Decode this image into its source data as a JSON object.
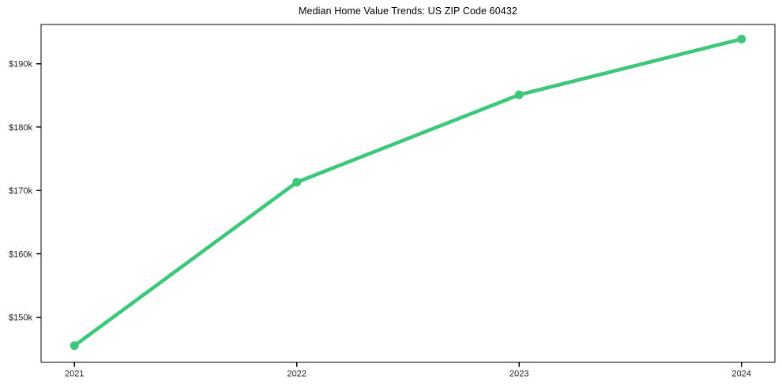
{
  "title": "Median Home Value Trends: US ZIP Code 60432",
  "colors": {
    "line": "#3cc878",
    "marker": "#3cc878",
    "axis": "#000000",
    "text": "#1a1a1a",
    "background": "#ffffff"
  },
  "chart_data": {
    "type": "line",
    "title": "Median Home Value Trends: US ZIP Code 60432",
    "xlabel": "",
    "ylabel": "",
    "x": [
      2021,
      2022,
      2023,
      2024
    ],
    "x_tick_labels": [
      "2021",
      "2022",
      "2023",
      "2024"
    ],
    "series": [
      {
        "name": "Median Home Value",
        "values": [
          145500,
          171300,
          185100,
          193900
        ]
      }
    ],
    "y_ticks": [
      150000,
      160000,
      170000,
      180000,
      190000
    ],
    "y_tick_labels": [
      "$150k",
      "$160k",
      "$170k",
      "$180k",
      "$190k"
    ],
    "xlim": [
      2020.85,
      2024.15
    ],
    "ylim": [
      142900,
      196200
    ],
    "grid": false,
    "legend_position": "none",
    "marker_style": "circle",
    "marker_radius": 5.5,
    "line_width": 4.6
  }
}
